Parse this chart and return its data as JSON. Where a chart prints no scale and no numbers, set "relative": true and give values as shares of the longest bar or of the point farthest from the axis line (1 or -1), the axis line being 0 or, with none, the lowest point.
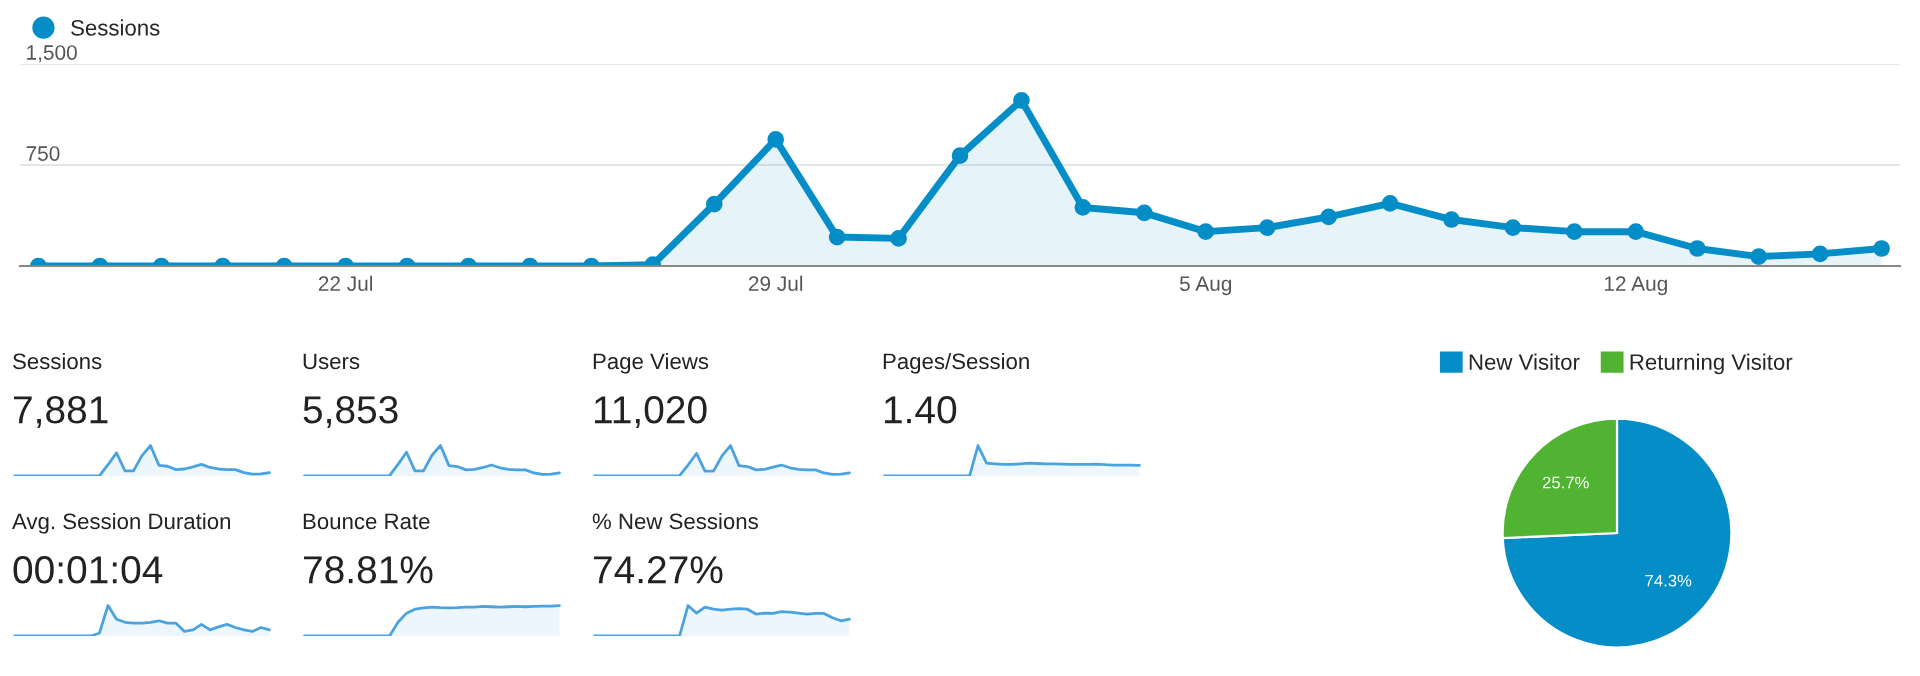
{
  "chart_data": [
    {
      "type": "area",
      "categories": [
        null,
        null,
        null,
        null,
        null,
        "22 Jul",
        null,
        null,
        null,
        null,
        null,
        null,
        "29 Jul",
        null,
        null,
        null,
        null,
        null,
        null,
        "5 Aug",
        null,
        null,
        null,
        null,
        null,
        null,
        "12 Aug",
        null,
        null,
        null,
        null
      ],
      "series": [
        {
          "name": "Sessions",
          "color": "#058dc7",
          "values": [
            0,
            0,
            0,
            0,
            0,
            0,
            0,
            0,
            0,
            0,
            10,
            460,
            940,
            215,
            205,
            820,
            1230,
            435,
            395,
            255,
            285,
            365,
            465,
            345,
            285,
            255,
            255,
            130,
            70,
            90,
            130
          ]
        }
      ],
      "ylim": [
        0,
        1500
      ],
      "yticks": [
        {
          "value": 750,
          "label": "750"
        },
        {
          "value": 1500,
          "label": "1,500"
        }
      ],
      "grid": "y",
      "marker": "circle",
      "legend": "top left"
    },
    {
      "type": "area",
      "title": "Sessions",
      "subtitle": "7,881",
      "relative": true,
      "categories": [
        null,
        null,
        null,
        null,
        null,
        null,
        null,
        null,
        null,
        null,
        null,
        null,
        null,
        null,
        null,
        null,
        null,
        null,
        null,
        null,
        null,
        null,
        null,
        null,
        null,
        null,
        null,
        null,
        null,
        null,
        null
      ],
      "series": [
        {
          "color": "#4aa3df",
          "values": [
            0,
            0,
            0,
            0,
            0,
            0,
            0,
            0,
            0,
            0,
            0.01,
            0.37,
            0.76,
            0.17,
            0.17,
            0.67,
            1,
            0.35,
            0.32,
            0.21,
            0.23,
            0.3,
            0.38,
            0.28,
            0.23,
            0.21,
            0.21,
            0.11,
            0.06,
            0.07,
            0.11
          ]
        }
      ]
    },
    {
      "type": "area",
      "title": "Users",
      "subtitle": "5,853",
      "relative": true,
      "categories": [
        null,
        null,
        null,
        null,
        null,
        null,
        null,
        null,
        null,
        null,
        null,
        null,
        null,
        null,
        null,
        null,
        null,
        null,
        null,
        null,
        null,
        null,
        null,
        null,
        null,
        null,
        null,
        null,
        null,
        null,
        null
      ],
      "series": [
        {
          "color": "#4aa3df",
          "values": [
            0,
            0,
            0,
            0,
            0,
            0,
            0,
            0,
            0,
            0,
            0.01,
            0.38,
            0.78,
            0.17,
            0.17,
            0.68,
            1,
            0.34,
            0.31,
            0.2,
            0.22,
            0.28,
            0.36,
            0.27,
            0.22,
            0.2,
            0.2,
            0.1,
            0.05,
            0.06,
            0.1
          ]
        }
      ]
    },
    {
      "type": "area",
      "title": "Page Views",
      "subtitle": "11,020",
      "relative": true,
      "categories": [
        null,
        null,
        null,
        null,
        null,
        null,
        null,
        null,
        null,
        null,
        null,
        null,
        null,
        null,
        null,
        null,
        null,
        null,
        null,
        null,
        null,
        null,
        null,
        null,
        null,
        null,
        null,
        null,
        null,
        null,
        null
      ],
      "series": [
        {
          "color": "#4aa3df",
          "values": [
            0,
            0,
            0,
            0,
            0,
            0,
            0,
            0,
            0,
            0,
            0.01,
            0.36,
            0.74,
            0.16,
            0.16,
            0.66,
            1,
            0.34,
            0.31,
            0.2,
            0.22,
            0.29,
            0.36,
            0.27,
            0.22,
            0.2,
            0.2,
            0.1,
            0.05,
            0.06,
            0.1
          ]
        }
      ]
    },
    {
      "type": "area",
      "title": "Pages/Session",
      "subtitle": "1.40",
      "relative": true,
      "categories": [
        null,
        null,
        null,
        null,
        null,
        null,
        null,
        null,
        null,
        null,
        null,
        null,
        null,
        null,
        null,
        null,
        null,
        null,
        null,
        null,
        null,
        null,
        null,
        null,
        null,
        null,
        null,
        null,
        null,
        null,
        null
      ],
      "series": [
        {
          "color": "#4aa3df",
          "values": [
            0,
            0,
            0,
            0,
            0,
            0,
            0,
            0,
            0,
            0,
            0,
            1,
            0.42,
            0.4,
            0.38,
            0.38,
            0.4,
            0.42,
            0.41,
            0.4,
            0.4,
            0.39,
            0.38,
            0.38,
            0.38,
            0.39,
            0.37,
            0.36,
            0.36,
            0.36,
            0.35
          ]
        }
      ]
    },
    {
      "type": "area",
      "title": "Avg. Session Duration",
      "subtitle": "00:01:04",
      "relative": true,
      "categories": [
        null,
        null,
        null,
        null,
        null,
        null,
        null,
        null,
        null,
        null,
        null,
        null,
        null,
        null,
        null,
        null,
        null,
        null,
        null,
        null,
        null,
        null,
        null,
        null,
        null,
        null,
        null,
        null,
        null,
        null,
        null
      ],
      "series": [
        {
          "color": "#4aa3df",
          "values": [
            0,
            0,
            0,
            0,
            0,
            0,
            0,
            0,
            0,
            0,
            0.1,
            1,
            0.55,
            0.45,
            0.42,
            0.42,
            0.45,
            0.5,
            0.42,
            0.42,
            0.15,
            0.2,
            0.38,
            0.2,
            0.3,
            0.38,
            0.28,
            0.2,
            0.15,
            0.28,
            0.2
          ]
        }
      ]
    },
    {
      "type": "area",
      "title": "Bounce Rate",
      "subtitle": "78.81%",
      "relative": true,
      "categories": [
        null,
        null,
        null,
        null,
        null,
        null,
        null,
        null,
        null,
        null,
        null,
        null,
        null,
        null,
        null,
        null,
        null,
        null,
        null,
        null,
        null,
        null,
        null,
        null,
        null,
        null,
        null,
        null,
        null,
        null,
        null
      ],
      "series": [
        {
          "color": "#4aa3df",
          "values": [
            0,
            0,
            0,
            0,
            0,
            0,
            0,
            0,
            0,
            0,
            0,
            0.45,
            0.75,
            0.88,
            0.92,
            0.95,
            0.93,
            0.92,
            0.93,
            0.95,
            0.95,
            0.97,
            0.96,
            0.95,
            0.96,
            0.97,
            0.96,
            0.97,
            0.98,
            0.98,
            1
          ]
        }
      ]
    },
    {
      "type": "area",
      "title": "% New Sessions",
      "subtitle": "74.27%",
      "relative": true,
      "categories": [
        null,
        null,
        null,
        null,
        null,
        null,
        null,
        null,
        null,
        null,
        null,
        null,
        null,
        null,
        null,
        null,
        null,
        null,
        null,
        null,
        null,
        null,
        null,
        null,
        null,
        null,
        null,
        null,
        null,
        null,
        null
      ],
      "series": [
        {
          "color": "#4aa3df",
          "values": [
            0,
            0,
            0,
            0,
            0,
            0,
            0,
            0,
            0,
            0,
            0,
            1,
            0.75,
            0.95,
            0.88,
            0.85,
            0.88,
            0.9,
            0.88,
            0.72,
            0.75,
            0.74,
            0.8,
            0.78,
            0.75,
            0.72,
            0.74,
            0.74,
            0.6,
            0.5,
            0.55
          ]
        }
      ]
    },
    {
      "type": "pie",
      "categories": [
        "New Visitor",
        "Returning Visitor"
      ],
      "values": [
        74.3,
        25.7
      ],
      "colors": [
        "#058dc7",
        "#50b432"
      ],
      "value_labels": [
        "74.3%",
        "25.7%"
      ],
      "legend": "top"
    }
  ]
}
